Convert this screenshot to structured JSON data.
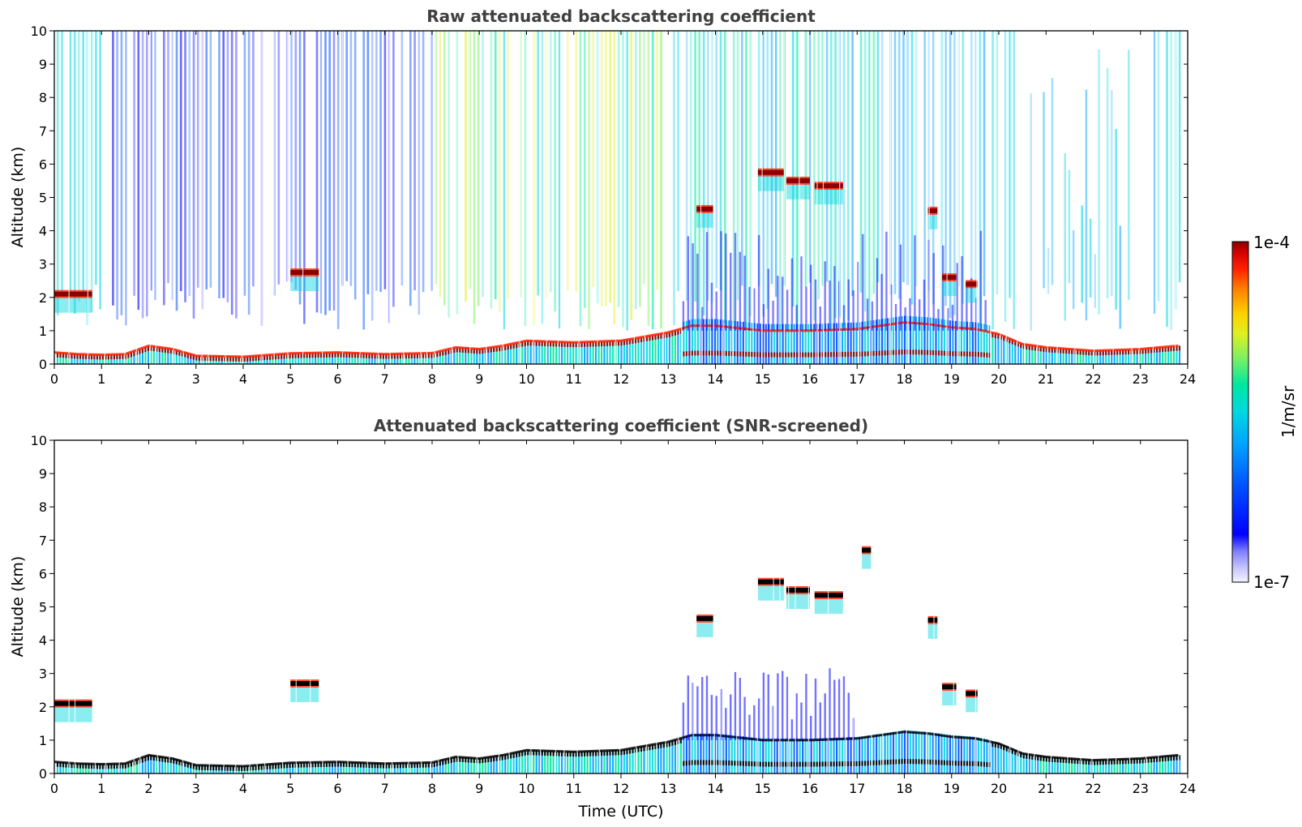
{
  "chart_data": [
    {
      "type": "heatmap",
      "title": "Raw attenuated backscattering coefficient",
      "xlabel": "",
      "ylabel": "Altitude (km)",
      "xlim": [
        0,
        24
      ],
      "ylim": [
        0,
        10
      ],
      "xticks": [
        "0",
        "1",
        "2",
        "3",
        "4",
        "5",
        "6",
        "7",
        "8",
        "9",
        "10",
        "11",
        "12",
        "13",
        "14",
        "15",
        "16",
        "17",
        "18",
        "19",
        "20",
        "21",
        "22",
        "23",
        "24"
      ],
      "yticks": [
        "0",
        "1",
        "2",
        "3",
        "4",
        "5",
        "6",
        "7",
        "8",
        "9",
        "10"
      ],
      "boundary_layer_top_km": [
        [
          0,
          0.35
        ],
        [
          0.5,
          0.3
        ],
        [
          1,
          0.28
        ],
        [
          1.5,
          0.3
        ],
        [
          2,
          0.55
        ],
        [
          2.5,
          0.45
        ],
        [
          3,
          0.25
        ],
        [
          4,
          0.22
        ],
        [
          5,
          0.32
        ],
        [
          6,
          0.35
        ],
        [
          7,
          0.3
        ],
        [
          8,
          0.33
        ],
        [
          8.5,
          0.5
        ],
        [
          9,
          0.45
        ],
        [
          9.5,
          0.55
        ],
        [
          10,
          0.7
        ],
        [
          11,
          0.65
        ],
        [
          12,
          0.7
        ],
        [
          13,
          0.95
        ],
        [
          13.5,
          1.15
        ],
        [
          14,
          1.15
        ],
        [
          15,
          1.0
        ],
        [
          16,
          1.0
        ],
        [
          17,
          1.05
        ],
        [
          18,
          1.25
        ],
        [
          18.5,
          1.2
        ],
        [
          19,
          1.1
        ],
        [
          19.5,
          1.05
        ],
        [
          20,
          0.9
        ],
        [
          20.5,
          0.6
        ],
        [
          21,
          0.5
        ],
        [
          22,
          0.4
        ],
        [
          23,
          0.45
        ],
        [
          23.8,
          0.55
        ]
      ],
      "cloud_layers": [
        {
          "t_start": 0.0,
          "t_end": 0.8,
          "alt_km": 2.1
        },
        {
          "t_start": 5.0,
          "t_end": 5.6,
          "alt_km": 2.75
        },
        {
          "t_start": 13.6,
          "t_end": 13.95,
          "alt_km": 4.65
        },
        {
          "t_start": 14.9,
          "t_end": 15.45,
          "alt_km": 5.75
        },
        {
          "t_start": 15.5,
          "t_end": 16.0,
          "alt_km": 5.5
        },
        {
          "t_start": 16.1,
          "t_end": 16.7,
          "alt_km": 5.35
        },
        {
          "t_start": 18.5,
          "t_end": 18.7,
          "alt_km": 4.6
        },
        {
          "t_start": 18.8,
          "t_end": 19.1,
          "alt_km": 2.6
        },
        {
          "t_start": 19.3,
          "t_end": 19.55,
          "alt_km": 2.4
        }
      ],
      "colorbar": {
        "min": "1e-7",
        "max": "1e-4",
        "label": "1/m/sr",
        "scale": "log"
      }
    },
    {
      "type": "heatmap",
      "title": "Attenuated backscattering coefficient (SNR-screened)",
      "xlabel": "Time (UTC)",
      "ylabel": "Altitude (km)",
      "xlim": [
        0,
        24
      ],
      "ylim": [
        0,
        10
      ],
      "xticks": [
        "0",
        "1",
        "2",
        "3",
        "4",
        "5",
        "6",
        "7",
        "8",
        "9",
        "10",
        "11",
        "12",
        "13",
        "14",
        "15",
        "16",
        "17",
        "18",
        "19",
        "20",
        "21",
        "22",
        "23",
        "24"
      ],
      "yticks": [
        "0",
        "1",
        "2",
        "3",
        "4",
        "5",
        "6",
        "7",
        "8",
        "9",
        "10"
      ],
      "boundary_layer_top_km": [
        [
          0,
          0.35
        ],
        [
          0.5,
          0.3
        ],
        [
          1,
          0.28
        ],
        [
          1.5,
          0.3
        ],
        [
          2,
          0.55
        ],
        [
          2.5,
          0.45
        ],
        [
          3,
          0.25
        ],
        [
          4,
          0.22
        ],
        [
          5,
          0.32
        ],
        [
          6,
          0.35
        ],
        [
          7,
          0.3
        ],
        [
          8,
          0.33
        ],
        [
          8.5,
          0.5
        ],
        [
          9,
          0.45
        ],
        [
          9.5,
          0.55
        ],
        [
          10,
          0.7
        ],
        [
          11,
          0.65
        ],
        [
          12,
          0.7
        ],
        [
          13,
          0.95
        ],
        [
          13.5,
          1.15
        ],
        [
          14,
          1.15
        ],
        [
          15,
          1.0
        ],
        [
          16,
          1.0
        ],
        [
          17,
          1.05
        ],
        [
          18,
          1.25
        ],
        [
          18.5,
          1.2
        ],
        [
          19,
          1.1
        ],
        [
          19.5,
          1.05
        ],
        [
          20,
          0.9
        ],
        [
          20.5,
          0.6
        ],
        [
          21,
          0.5
        ],
        [
          22,
          0.4
        ],
        [
          23,
          0.45
        ],
        [
          23.8,
          0.55
        ]
      ],
      "cloud_layers": [
        {
          "t_start": 0.0,
          "t_end": 0.8,
          "alt_km": 2.1
        },
        {
          "t_start": 5.0,
          "t_end": 5.6,
          "alt_km": 2.7
        },
        {
          "t_start": 13.6,
          "t_end": 13.95,
          "alt_km": 4.65
        },
        {
          "t_start": 14.9,
          "t_end": 15.45,
          "alt_km": 5.75
        },
        {
          "t_start": 15.5,
          "t_end": 16.0,
          "alt_km": 5.5
        },
        {
          "t_start": 16.1,
          "t_end": 16.7,
          "alt_km": 5.35
        },
        {
          "t_start": 17.1,
          "t_end": 17.3,
          "alt_km": 6.7
        },
        {
          "t_start": 18.5,
          "t_end": 18.7,
          "alt_km": 4.6
        },
        {
          "t_start": 18.8,
          "t_end": 19.1,
          "alt_km": 2.6
        },
        {
          "t_start": 19.3,
          "t_end": 19.55,
          "alt_km": 2.4
        }
      ],
      "colorbar": {
        "min": "1e-7",
        "max": "1e-4",
        "label": "1/m/sr",
        "scale": "log"
      }
    }
  ],
  "colors": {
    "cmap": [
      "#f4f4ff",
      "#c8c8ff",
      "#8080ff",
      "#0000ff",
      "#0050ff",
      "#00a0ff",
      "#00d8e0",
      "#00e8a0",
      "#80f060",
      "#e0f020",
      "#ffd000",
      "#ff8000",
      "#ff2000",
      "#d00000",
      "#8b0000"
    ],
    "title_color": "#404040",
    "cloud_core": "#8b0000",
    "cloud_edge": "#ff2000",
    "screened_core": "#000000"
  }
}
